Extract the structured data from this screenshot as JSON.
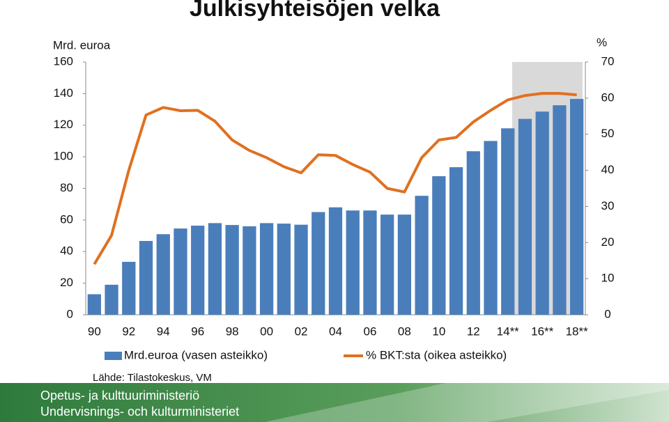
{
  "chart_data": {
    "type": "combo",
    "title": "Julkisyhteisöjen velka",
    "ylabel": "Mrd. euroa",
    "y2label": "%",
    "source": "Lähde: Tilastokeskus, VM",
    "categories": [
      "90",
      null,
      "92",
      null,
      "94",
      null,
      "96",
      null,
      "98",
      null,
      "00",
      null,
      "02",
      null,
      "04",
      null,
      "06",
      null,
      "08",
      null,
      "10",
      null,
      "12",
      null,
      "14**",
      null,
      "16**",
      null,
      "18**"
    ],
    "series": [
      {
        "name": "Mrd.euroa (vasen asteikko)",
        "type": "bar",
        "color": "#4a7ebb",
        "values": [
          13,
          19,
          33.5,
          46.7,
          51,
          54.6,
          56.4,
          58,
          56.8,
          56,
          58,
          57.7,
          57,
          65,
          68,
          66,
          66,
          63.4,
          63.4,
          75.3,
          87.7,
          93.4,
          103.5,
          110,
          118,
          124,
          128.6,
          132.6,
          136.6
        ]
      },
      {
        "name": "% BKT:sta (oikea asteikko)",
        "type": "line",
        "axis": "y2",
        "color": "#e07020",
        "values": [
          14,
          22,
          40,
          55.3,
          57.4,
          56.5,
          56.6,
          53.6,
          48.4,
          45.5,
          43.5,
          41,
          39.3,
          44.3,
          44.1,
          41.6,
          39.5,
          35,
          34,
          43.5,
          48.4,
          49.1,
          53.4,
          56.6,
          59.5,
          60.7,
          61.3,
          61.3,
          60.9
        ]
      }
    ],
    "ylim": [
      0,
      160
    ],
    "yticks": [
      0,
      20,
      40,
      60,
      80,
      100,
      120,
      140,
      160
    ],
    "y2lim": [
      0,
      70
    ],
    "y2ticks": [
      0,
      10,
      20,
      30,
      40,
      50,
      60,
      70
    ],
    "footer": [
      "Opetus- ja kulttuuriministeriö",
      "Undervisnings- och kulturministeriet"
    ]
  }
}
